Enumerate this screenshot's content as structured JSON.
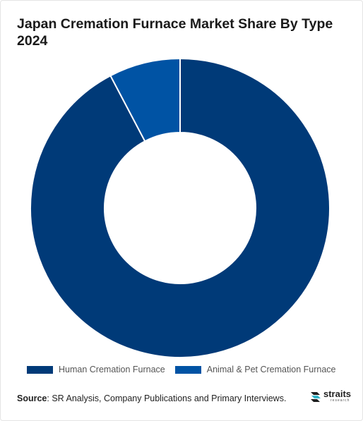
{
  "title": "Japan Cremation Furnace Market Share By Type 2024",
  "chart_data": {
    "type": "pie",
    "variant": "donut",
    "title": "Japan Cremation Furnace Market Share By Type 2024",
    "categories": [
      "Human Cremation Furnace",
      "Animal & Pet Cremation Furnace"
    ],
    "values": [
      92.3,
      7.7
    ],
    "colors": [
      "#003a78",
      "#0053a4"
    ],
    "legend": "bottom"
  },
  "legend": {
    "items": [
      {
        "label": "Human Cremation Furnace",
        "color": "#003a78"
      },
      {
        "label": "Animal & Pet Cremation Furnace",
        "color": "#0053a4"
      }
    ]
  },
  "source": {
    "label": "Source",
    "text": ": SR Analysis, Company Publications and Primary Interviews."
  },
  "logo": {
    "main": "straits",
    "sub": "research"
  }
}
